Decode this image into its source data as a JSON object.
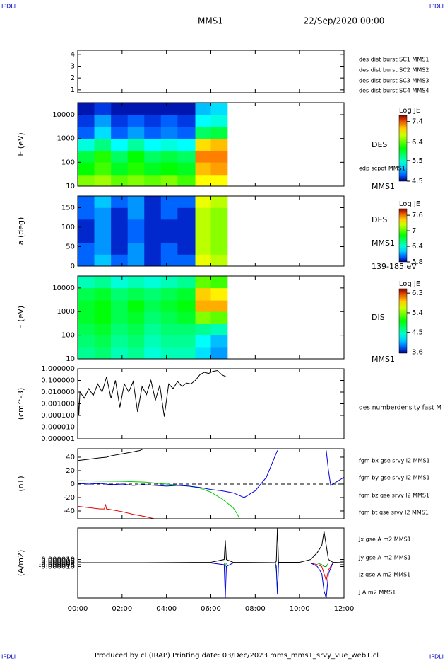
{
  "page": {
    "corner_tl": "IPDLI",
    "corner_tr": "IPDLI",
    "corner_bl": "IPDLI",
    "corner_br": "IPDLI",
    "title": "MMS1",
    "date": "22/Sep/2020 00:00",
    "footer": "Produced by cl (IRAP)   Printing date: 03/Dec/2023   mms_mms1_srvy_vue_web1.cl"
  },
  "chart_data": [
    {
      "type": "line",
      "xlim": [
        0,
        12
      ],
      "ylim": [
        0.75,
        4.35
      ],
      "yticks": [
        1,
        2,
        3,
        4
      ],
      "series": [
        {
          "name": "des dist burst SC1 MMS1",
          "color": "#0000ff"
        },
        {
          "name": "des dist burst SC2 MMS2",
          "color": "#ff00ff"
        },
        {
          "name": "des dist burst SC3 MMS3",
          "color": "#ff0000"
        },
        {
          "name": "des dist burst SC4 MMS4",
          "color": "#00c000"
        }
      ]
    },
    {
      "type": "heatmap",
      "ylabel": "E (eV)",
      "log_y": true,
      "xlim": [
        0,
        12
      ],
      "ylim": [
        10,
        32000
      ],
      "yticks": [
        10,
        100,
        1000,
        10000
      ],
      "xbins": [
        0,
        0.75,
        1.5,
        2.25,
        3,
        3.75,
        4.5,
        5.3,
        6.0,
        6.75
      ],
      "ybins": [
        10,
        30,
        100,
        300,
        1000,
        3000,
        10000,
        32000
      ],
      "values": [
        [
          6.5,
          6.6,
          6.4,
          6.5,
          6.4,
          6.5,
          6.3,
          6.9,
          6.9
        ],
        [
          6.1,
          6.3,
          6.0,
          6.2,
          6.0,
          6.1,
          6.0,
          7.1,
          7.2
        ],
        [
          5.9,
          6.2,
          5.8,
          6.1,
          5.8,
          5.9,
          5.8,
          7.3,
          7.3
        ],
        [
          5.4,
          5.7,
          5.3,
          5.6,
          5.3,
          5.4,
          5.3,
          7.0,
          7.1
        ],
        [
          4.8,
          5.2,
          4.8,
          5.0,
          4.8,
          4.9,
          4.8,
          5.8,
          5.9
        ],
        [
          4.7,
          5.0,
          4.7,
          4.8,
          4.7,
          4.8,
          4.7,
          5.3,
          5.4
        ],
        [
          4.6,
          4.7,
          4.6,
          4.6,
          4.6,
          4.6,
          4.6,
          5.1,
          5.2
        ]
      ],
      "clabel": "Log JE",
      "clim": [
        4.5,
        7.7
      ],
      "cticks": [
        4.5,
        5.5,
        6.4,
        7.4
      ],
      "annotations": [
        "DES",
        "edp scpot MMS1",
        "MMS1"
      ]
    },
    {
      "type": "heatmap",
      "ylabel": "a (deg)",
      "xlim": [
        0,
        12
      ],
      "ylim": [
        0,
        180
      ],
      "yticks": [
        0,
        50,
        100,
        150
      ],
      "xbins": [
        0,
        0.75,
        1.5,
        2.25,
        3,
        3.75,
        4.5,
        5.3,
        6.0,
        6.75
      ],
      "ybins": [
        0,
        30,
        60,
        90,
        120,
        150,
        180
      ],
      "values": [
        [
          6.0,
          6.2,
          6.0,
          6.1,
          5.9,
          6.0,
          6.0,
          7.3,
          7.2
        ],
        [
          6.0,
          6.1,
          5.9,
          6.1,
          5.9,
          6.0,
          5.9,
          7.2,
          7.1
        ],
        [
          5.9,
          6.1,
          5.9,
          6.0,
          5.9,
          5.9,
          5.9,
          7.2,
          7.1
        ],
        [
          5.9,
          6.1,
          5.9,
          6.0,
          5.9,
          5.9,
          5.9,
          7.2,
          7.1
        ],
        [
          6.0,
          6.1,
          5.9,
          6.1,
          5.9,
          6.0,
          5.9,
          7.2,
          7.1
        ],
        [
          6.0,
          6.2,
          6.0,
          6.1,
          5.9,
          6.0,
          6.0,
          7.3,
          7.2
        ]
      ],
      "clabel": "Log JE",
      "clim": [
        5.8,
        7.85
      ],
      "cticks": [
        5.8,
        6.4,
        7.0,
        7.6
      ],
      "annotations": [
        "DES",
        "MMS1",
        "139-185 eV"
      ]
    },
    {
      "type": "heatmap",
      "ylabel": "E (eV)",
      "log_y": true,
      "xlim": [
        0,
        12
      ],
      "ylim": [
        10,
        32000
      ],
      "yticks": [
        10,
        100,
        1000,
        10000
      ],
      "xbins": [
        0,
        0.75,
        1.5,
        2.25,
        3,
        3.75,
        4.5,
        5.3,
        6.0,
        6.75
      ],
      "ybins": [
        10,
        30,
        100,
        300,
        1000,
        3000,
        10000,
        32000
      ],
      "values": [
        [
          4.6,
          4.7,
          4.5,
          4.6,
          4.4,
          4.5,
          4.5,
          4.2,
          4.0
        ],
        [
          4.7,
          4.8,
          4.6,
          4.7,
          4.5,
          4.6,
          4.6,
          4.3,
          4.1
        ],
        [
          4.8,
          4.9,
          4.7,
          4.8,
          4.6,
          4.7,
          4.7,
          4.6,
          4.5
        ],
        [
          4.9,
          5.0,
          4.8,
          4.9,
          4.7,
          4.8,
          4.9,
          5.4,
          5.3
        ],
        [
          4.9,
          5.0,
          4.8,
          5.0,
          4.8,
          4.9,
          5.0,
          6.0,
          6.0
        ],
        [
          4.8,
          4.9,
          4.7,
          4.8,
          4.7,
          4.8,
          4.9,
          5.9,
          5.8
        ],
        [
          4.5,
          4.6,
          4.4,
          4.5,
          4.4,
          4.5,
          4.6,
          5.3,
          5.2
        ]
      ],
      "clabel": "Log JE",
      "clim": [
        3.55,
        6.5
      ],
      "cticks": [
        3.6,
        4.5,
        5.4,
        6.3
      ],
      "annotations": [
        "DIS",
        "MMS1"
      ]
    },
    {
      "type": "line",
      "ylabel": "(cm^-3)",
      "log_y": true,
      "xlim": [
        0,
        12
      ],
      "ylim": [
        1e-06,
        1
      ],
      "yticks": [
        {
          "value": 1,
          "label": "1.000000"
        },
        {
          "value": 0.1,
          "label": "0.100000"
        },
        {
          "value": 0.01,
          "label": "0.010000"
        },
        {
          "value": 0.001,
          "label": "0.001000"
        },
        {
          "value": 0.0001,
          "label": "0.000100"
        },
        {
          "value": 1e-05,
          "label": "0.000010"
        },
        {
          "value": 1e-06,
          "label": "0.000001"
        }
      ],
      "x": [
        0,
        0.05,
        0.1,
        0.3,
        0.5,
        0.7,
        0.9,
        1.1,
        1.3,
        1.5,
        1.7,
        1.9,
        2.1,
        2.3,
        2.5,
        2.7,
        2.9,
        3.1,
        3.3,
        3.5,
        3.7,
        3.9,
        4.1,
        4.3,
        4.5,
        4.7,
        4.9,
        5.1,
        5.3,
        5.5,
        5.7,
        5.9,
        6.1,
        6.3,
        6.5,
        6.7
      ],
      "series": [
        {
          "color": "#000000",
          "values": [
            0.02,
            0.0001,
            0.01,
            0.003,
            0.02,
            0.005,
            0.05,
            0.01,
            0.2,
            0.003,
            0.1,
            0.0005,
            0.05,
            0.01,
            0.08,
            0.0002,
            0.03,
            0.006,
            0.1,
            0.002,
            0.04,
            8e-05,
            0.05,
            0.02,
            0.08,
            0.03,
            0.06,
            0.05,
            0.1,
            0.3,
            0.5,
            0.4,
            0.6,
            0.7,
            0.3,
            0.2
          ]
        }
      ],
      "annotations": [
        "des numberdensity fast M"
      ]
    },
    {
      "type": "line",
      "ylabel": "(nT)",
      "xlim": [
        0,
        12
      ],
      "ylim": [
        -51.6,
        52.6
      ],
      "yticks": [
        40,
        20,
        0,
        -20,
        -40
      ],
      "zero_line": "dashed",
      "series": [
        {
          "name": "fgm bx gse srvy l2 MMS1",
          "color": "#e00000",
          "x": [
            0,
            0.5,
            1,
            1.2,
            1.25,
            1.3,
            1.5,
            2,
            2.5,
            3,
            3.5
          ],
          "values": [
            -33,
            -35,
            -37,
            -37,
            -30,
            -37,
            -38,
            -41,
            -45,
            -48,
            -52
          ]
        },
        {
          "name": "fgm by gse srvy l2 MMS1",
          "color": "#00d000",
          "x": [
            0,
            1,
            2,
            3,
            4,
            5,
            5.5,
            6,
            6.5,
            7,
            7.2,
            7.3
          ],
          "values": [
            5,
            4.5,
            4,
            3,
            0,
            -3,
            -6,
            -12,
            -22,
            -35,
            -45,
            -52
          ]
        },
        {
          "name": "fgm bz gse srvy l2 MMS1",
          "color": "#0000e0",
          "x": [
            0,
            0.5,
            1,
            1.5,
            2,
            2.5,
            3,
            3.5,
            4,
            4.5,
            5,
            5.5,
            6,
            6.5,
            7,
            7.5,
            8,
            8.5,
            9,
            10,
            11.2,
            11.3,
            11.4,
            11.5,
            12
          ],
          "values": [
            1,
            0,
            1,
            -1,
            0,
            -2,
            -1,
            -2,
            -3,
            -2,
            -3,
            -5,
            -8,
            -10,
            -13,
            -20,
            -10,
            10,
            50,
            null,
            50,
            20,
            -2,
            0,
            10
          ]
        },
        {
          "name": "fgm bt gse srvy l2 MMS1",
          "color": "#000000",
          "x": [
            0,
            0.5,
            1,
            1.3,
            1.5,
            2,
            2.5,
            2.8,
            3
          ],
          "values": [
            35,
            37,
            39,
            40,
            42,
            45,
            48,
            50,
            53
          ]
        }
      ]
    },
    {
      "type": "line",
      "ylabel": "(A/m2)",
      "xlim": [
        0,
        12
      ],
      "ylim": [
        -0.0001,
        0.0001
      ],
      "zero_line": "solid",
      "yticks": [
        {
          "value": 1e-05,
          "label": "0.000010"
        },
        {
          "value": 5e-06,
          "label": "0.000005"
        },
        {
          "value": 0,
          "label": "0.000000"
        },
        {
          "value": -5e-06,
          "label": "-0.000005"
        },
        {
          "value": -1e-05,
          "label": "-0.000010"
        }
      ],
      "xticks": [
        {
          "value": 0,
          "label": "00:00"
        },
        {
          "value": 2,
          "label": "02:00"
        },
        {
          "value": 4,
          "label": "04:00"
        },
        {
          "value": 6,
          "label": "06:00"
        },
        {
          "value": 8,
          "label": "08:00"
        },
        {
          "value": 10,
          "label": "10:00"
        },
        {
          "value": 12,
          "label": "12:00"
        }
      ],
      "x": [
        0,
        3,
        6,
        6.6,
        6.65,
        6.7,
        7,
        8.9,
        8.95,
        9.0,
        9.05,
        10,
        10.5,
        10.8,
        11.0,
        11.1,
        11.2,
        11.3,
        11.5,
        12
      ],
      "series": [
        {
          "name": "Jx gse A m2 MMS1",
          "color": "#e00000",
          "values": [
            0,
            0,
            0,
            0,
            0,
            0,
            0,
            0,
            0,
            0,
            0,
            0,
            0,
            -5e-06,
            -1e-05,
            -3e-05,
            -5e-05,
            -2e-05,
            0,
            0
          ]
        },
        {
          "name": "Jy gse A m2 MMS1",
          "color": "#00b000",
          "values": [
            0,
            0,
            0,
            0,
            -1e-05,
            0,
            0,
            0,
            -2e-05,
            -8e-05,
            0,
            0,
            0,
            0,
            -5e-06,
            -1e-05,
            -1e-05,
            0,
            0,
            0
          ]
        },
        {
          "name": "Jz gse A m2 MMS1",
          "color": "#0000e0",
          "values": [
            0,
            0,
            0,
            -5e-06,
            -0.0001,
            -1e-05,
            0,
            0,
            -1e-05,
            -9e-05,
            0,
            0,
            0,
            -1e-05,
            -3e-05,
            -8e-05,
            -0.0001,
            -3e-05,
            0,
            0
          ]
        },
        {
          "name": "J A m2 MMS1",
          "color": "#000000",
          "values": [
            1e-06,
            1e-06,
            2e-06,
            1e-05,
            6.5e-05,
            1e-05,
            2e-06,
            1e-06,
            5e-06,
            0.0001,
            2e-06,
            2e-06,
            1e-05,
            3e-05,
            5e-05,
            9e-05,
            5e-05,
            1e-05,
            2e-06,
            1e-06
          ]
        }
      ]
    }
  ]
}
